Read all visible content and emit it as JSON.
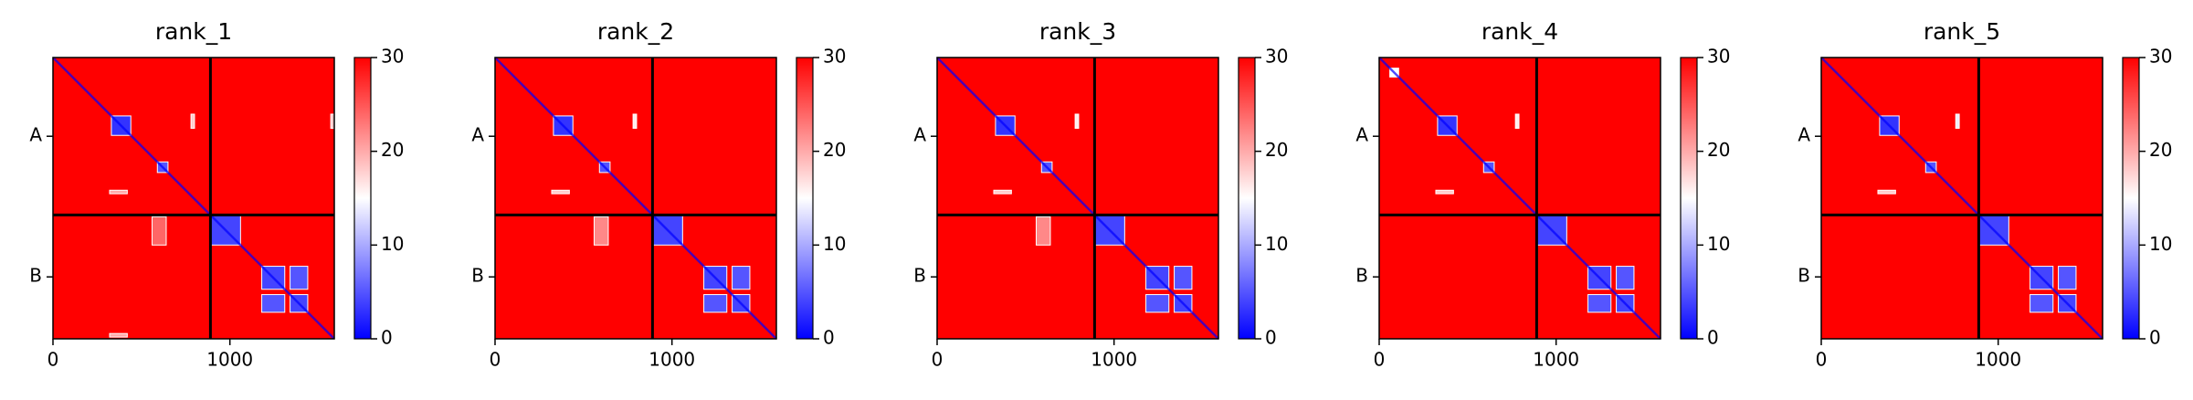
{
  "chart_data": [
    {
      "type": "heatmap",
      "title": "rank_1",
      "xlim": [
        0,
        1590
      ],
      "ylim": [
        0,
        1590
      ],
      "yaxis_inverted": true,
      "xticks": [
        0,
        1000
      ],
      "yticks": [
        {
          "value": 445,
          "label": "A"
        },
        {
          "value": 1240,
          "label": "B"
        }
      ],
      "chain_breaks": [
        890
      ],
      "colormap": [
        "#0000ff",
        "#ffffff",
        "#ff0000"
      ],
      "clim": [
        0,
        30
      ],
      "cticks": [
        0,
        10,
        20,
        30
      ],
      "background": 30,
      "diagonal": 0,
      "regions": [
        {
          "x": [
            330,
            440
          ],
          "y": [
            330,
            440
          ],
          "value": 3
        },
        {
          "x": [
            590,
            650
          ],
          "y": [
            590,
            650
          ],
          "value": 5
        },
        {
          "x": [
            890,
            1060
          ],
          "y": [
            890,
            1060
          ],
          "value": 4
        },
        {
          "x": [
            1180,
            1310
          ],
          "y": [
            1180,
            1310
          ],
          "value": 4
        },
        {
          "x": [
            1340,
            1440
          ],
          "y": [
            1180,
            1310
          ],
          "value": 5
        },
        {
          "x": [
            1180,
            1310
          ],
          "y": [
            1340,
            1440
          ],
          "value": 5
        },
        {
          "x": [
            1340,
            1440
          ],
          "y": [
            1340,
            1440
          ],
          "value": 4
        },
        {
          "x": [
            780,
            800
          ],
          "y": [
            320,
            400
          ],
          "value": 18
        },
        {
          "x": [
            1570,
            1590
          ],
          "y": [
            320,
            400
          ],
          "value": 18
        },
        {
          "x": [
            320,
            420
          ],
          "y": [
            750,
            770
          ],
          "value": 20
        },
        {
          "x": [
            320,
            420
          ],
          "y": [
            1560,
            1580
          ],
          "value": 20
        },
        {
          "x": [
            560,
            640
          ],
          "y": [
            900,
            1060
          ],
          "value": 24
        }
      ]
    },
    {
      "type": "heatmap",
      "title": "rank_2",
      "xlim": [
        0,
        1590
      ],
      "ylim": [
        0,
        1590
      ],
      "yaxis_inverted": true,
      "xticks": [
        0,
        1000
      ],
      "yticks": [
        {
          "value": 445,
          "label": "A"
        },
        {
          "value": 1240,
          "label": "B"
        }
      ],
      "chain_breaks": [
        890
      ],
      "colormap": [
        "#0000ff",
        "#ffffff",
        "#ff0000"
      ],
      "clim": [
        0,
        30
      ],
      "cticks": [
        0,
        10,
        20,
        30
      ],
      "background": 30,
      "diagonal": 0,
      "regions": [
        {
          "x": [
            330,
            440
          ],
          "y": [
            330,
            440
          ],
          "value": 3
        },
        {
          "x": [
            590,
            650
          ],
          "y": [
            590,
            650
          ],
          "value": 5
        },
        {
          "x": [
            890,
            1060
          ],
          "y": [
            890,
            1060
          ],
          "value": 4
        },
        {
          "x": [
            1180,
            1310
          ],
          "y": [
            1180,
            1310
          ],
          "value": 4
        },
        {
          "x": [
            1340,
            1440
          ],
          "y": [
            1180,
            1310
          ],
          "value": 5
        },
        {
          "x": [
            1180,
            1310
          ],
          "y": [
            1340,
            1440
          ],
          "value": 5
        },
        {
          "x": [
            1340,
            1440
          ],
          "y": [
            1340,
            1440
          ],
          "value": 4
        },
        {
          "x": [
            780,
            800
          ],
          "y": [
            320,
            400
          ],
          "value": 16
        },
        {
          "x": [
            320,
            420
          ],
          "y": [
            750,
            770
          ],
          "value": 18
        },
        {
          "x": [
            560,
            640
          ],
          "y": [
            900,
            1060
          ],
          "value": 22
        }
      ]
    },
    {
      "type": "heatmap",
      "title": "rank_3",
      "xlim": [
        0,
        1590
      ],
      "ylim": [
        0,
        1590
      ],
      "yaxis_inverted": true,
      "xticks": [
        0,
        1000
      ],
      "yticks": [
        {
          "value": 445,
          "label": "A"
        },
        {
          "value": 1240,
          "label": "B"
        }
      ],
      "chain_breaks": [
        890
      ],
      "colormap": [
        "#0000ff",
        "#ffffff",
        "#ff0000"
      ],
      "clim": [
        0,
        30
      ],
      "cticks": [
        0,
        10,
        20,
        30
      ],
      "background": 30,
      "diagonal": 0,
      "regions": [
        {
          "x": [
            330,
            440
          ],
          "y": [
            330,
            440
          ],
          "value": 3
        },
        {
          "x": [
            590,
            650
          ],
          "y": [
            590,
            650
          ],
          "value": 5
        },
        {
          "x": [
            890,
            1060
          ],
          "y": [
            890,
            1060
          ],
          "value": 4
        },
        {
          "x": [
            1180,
            1310
          ],
          "y": [
            1180,
            1310
          ],
          "value": 4
        },
        {
          "x": [
            1340,
            1440
          ],
          "y": [
            1180,
            1310
          ],
          "value": 5
        },
        {
          "x": [
            1180,
            1310
          ],
          "y": [
            1340,
            1440
          ],
          "value": 5
        },
        {
          "x": [
            1340,
            1440
          ],
          "y": [
            1340,
            1440
          ],
          "value": 4
        },
        {
          "x": [
            780,
            800
          ],
          "y": [
            320,
            400
          ],
          "value": 16
        },
        {
          "x": [
            320,
            420
          ],
          "y": [
            750,
            770
          ],
          "value": 18
        },
        {
          "x": [
            560,
            640
          ],
          "y": [
            900,
            1060
          ],
          "value": 22
        }
      ]
    },
    {
      "type": "heatmap",
      "title": "rank_4",
      "xlim": [
        0,
        1590
      ],
      "ylim": [
        0,
        1590
      ],
      "yaxis_inverted": true,
      "xticks": [
        0,
        1000
      ],
      "yticks": [
        {
          "value": 445,
          "label": "A"
        },
        {
          "value": 1240,
          "label": "B"
        }
      ],
      "chain_breaks": [
        890
      ],
      "colormap": [
        "#0000ff",
        "#ffffff",
        "#ff0000"
      ],
      "clim": [
        0,
        30
      ],
      "cticks": [
        0,
        10,
        20,
        30
      ],
      "background": 30,
      "diagonal": 0,
      "regions": [
        {
          "x": [
            60,
            110
          ],
          "y": [
            60,
            110
          ],
          "value": 15
        },
        {
          "x": [
            330,
            440
          ],
          "y": [
            330,
            440
          ],
          "value": 3
        },
        {
          "x": [
            590,
            650
          ],
          "y": [
            590,
            650
          ],
          "value": 5
        },
        {
          "x": [
            890,
            1060
          ],
          "y": [
            890,
            1060
          ],
          "value": 4
        },
        {
          "x": [
            1180,
            1310
          ],
          "y": [
            1180,
            1310
          ],
          "value": 4
        },
        {
          "x": [
            1340,
            1440
          ],
          "y": [
            1180,
            1310
          ],
          "value": 5
        },
        {
          "x": [
            1180,
            1310
          ],
          "y": [
            1340,
            1440
          ],
          "value": 5
        },
        {
          "x": [
            1340,
            1440
          ],
          "y": [
            1340,
            1440
          ],
          "value": 4
        },
        {
          "x": [
            770,
            790
          ],
          "y": [
            320,
            400
          ],
          "value": 16
        },
        {
          "x": [
            320,
            420
          ],
          "y": [
            750,
            770
          ],
          "value": 18
        }
      ]
    },
    {
      "type": "heatmap",
      "title": "rank_5",
      "xlim": [
        0,
        1590
      ],
      "ylim": [
        0,
        1590
      ],
      "yaxis_inverted": true,
      "xticks": [
        0,
        1000
      ],
      "yticks": [
        {
          "value": 445,
          "label": "A"
        },
        {
          "value": 1240,
          "label": "B"
        }
      ],
      "chain_breaks": [
        890
      ],
      "colormap": [
        "#0000ff",
        "#ffffff",
        "#ff0000"
      ],
      "clim": [
        0,
        30
      ],
      "cticks": [
        0,
        10,
        20,
        30
      ],
      "background": 30,
      "diagonal": 0,
      "regions": [
        {
          "x": [
            330,
            440
          ],
          "y": [
            330,
            440
          ],
          "value": 3
        },
        {
          "x": [
            590,
            650
          ],
          "y": [
            590,
            650
          ],
          "value": 5
        },
        {
          "x": [
            890,
            1060
          ],
          "y": [
            890,
            1060
          ],
          "value": 4
        },
        {
          "x": [
            1180,
            1310
          ],
          "y": [
            1180,
            1310
          ],
          "value": 4
        },
        {
          "x": [
            1340,
            1440
          ],
          "y": [
            1180,
            1310
          ],
          "value": 5
        },
        {
          "x": [
            1180,
            1310
          ],
          "y": [
            1340,
            1440
          ],
          "value": 5
        },
        {
          "x": [
            1340,
            1440
          ],
          "y": [
            1340,
            1440
          ],
          "value": 4
        },
        {
          "x": [
            760,
            780
          ],
          "y": [
            320,
            400
          ],
          "value": 14
        },
        {
          "x": [
            320,
            420
          ],
          "y": [
            750,
            770
          ],
          "value": 18
        }
      ]
    }
  ]
}
